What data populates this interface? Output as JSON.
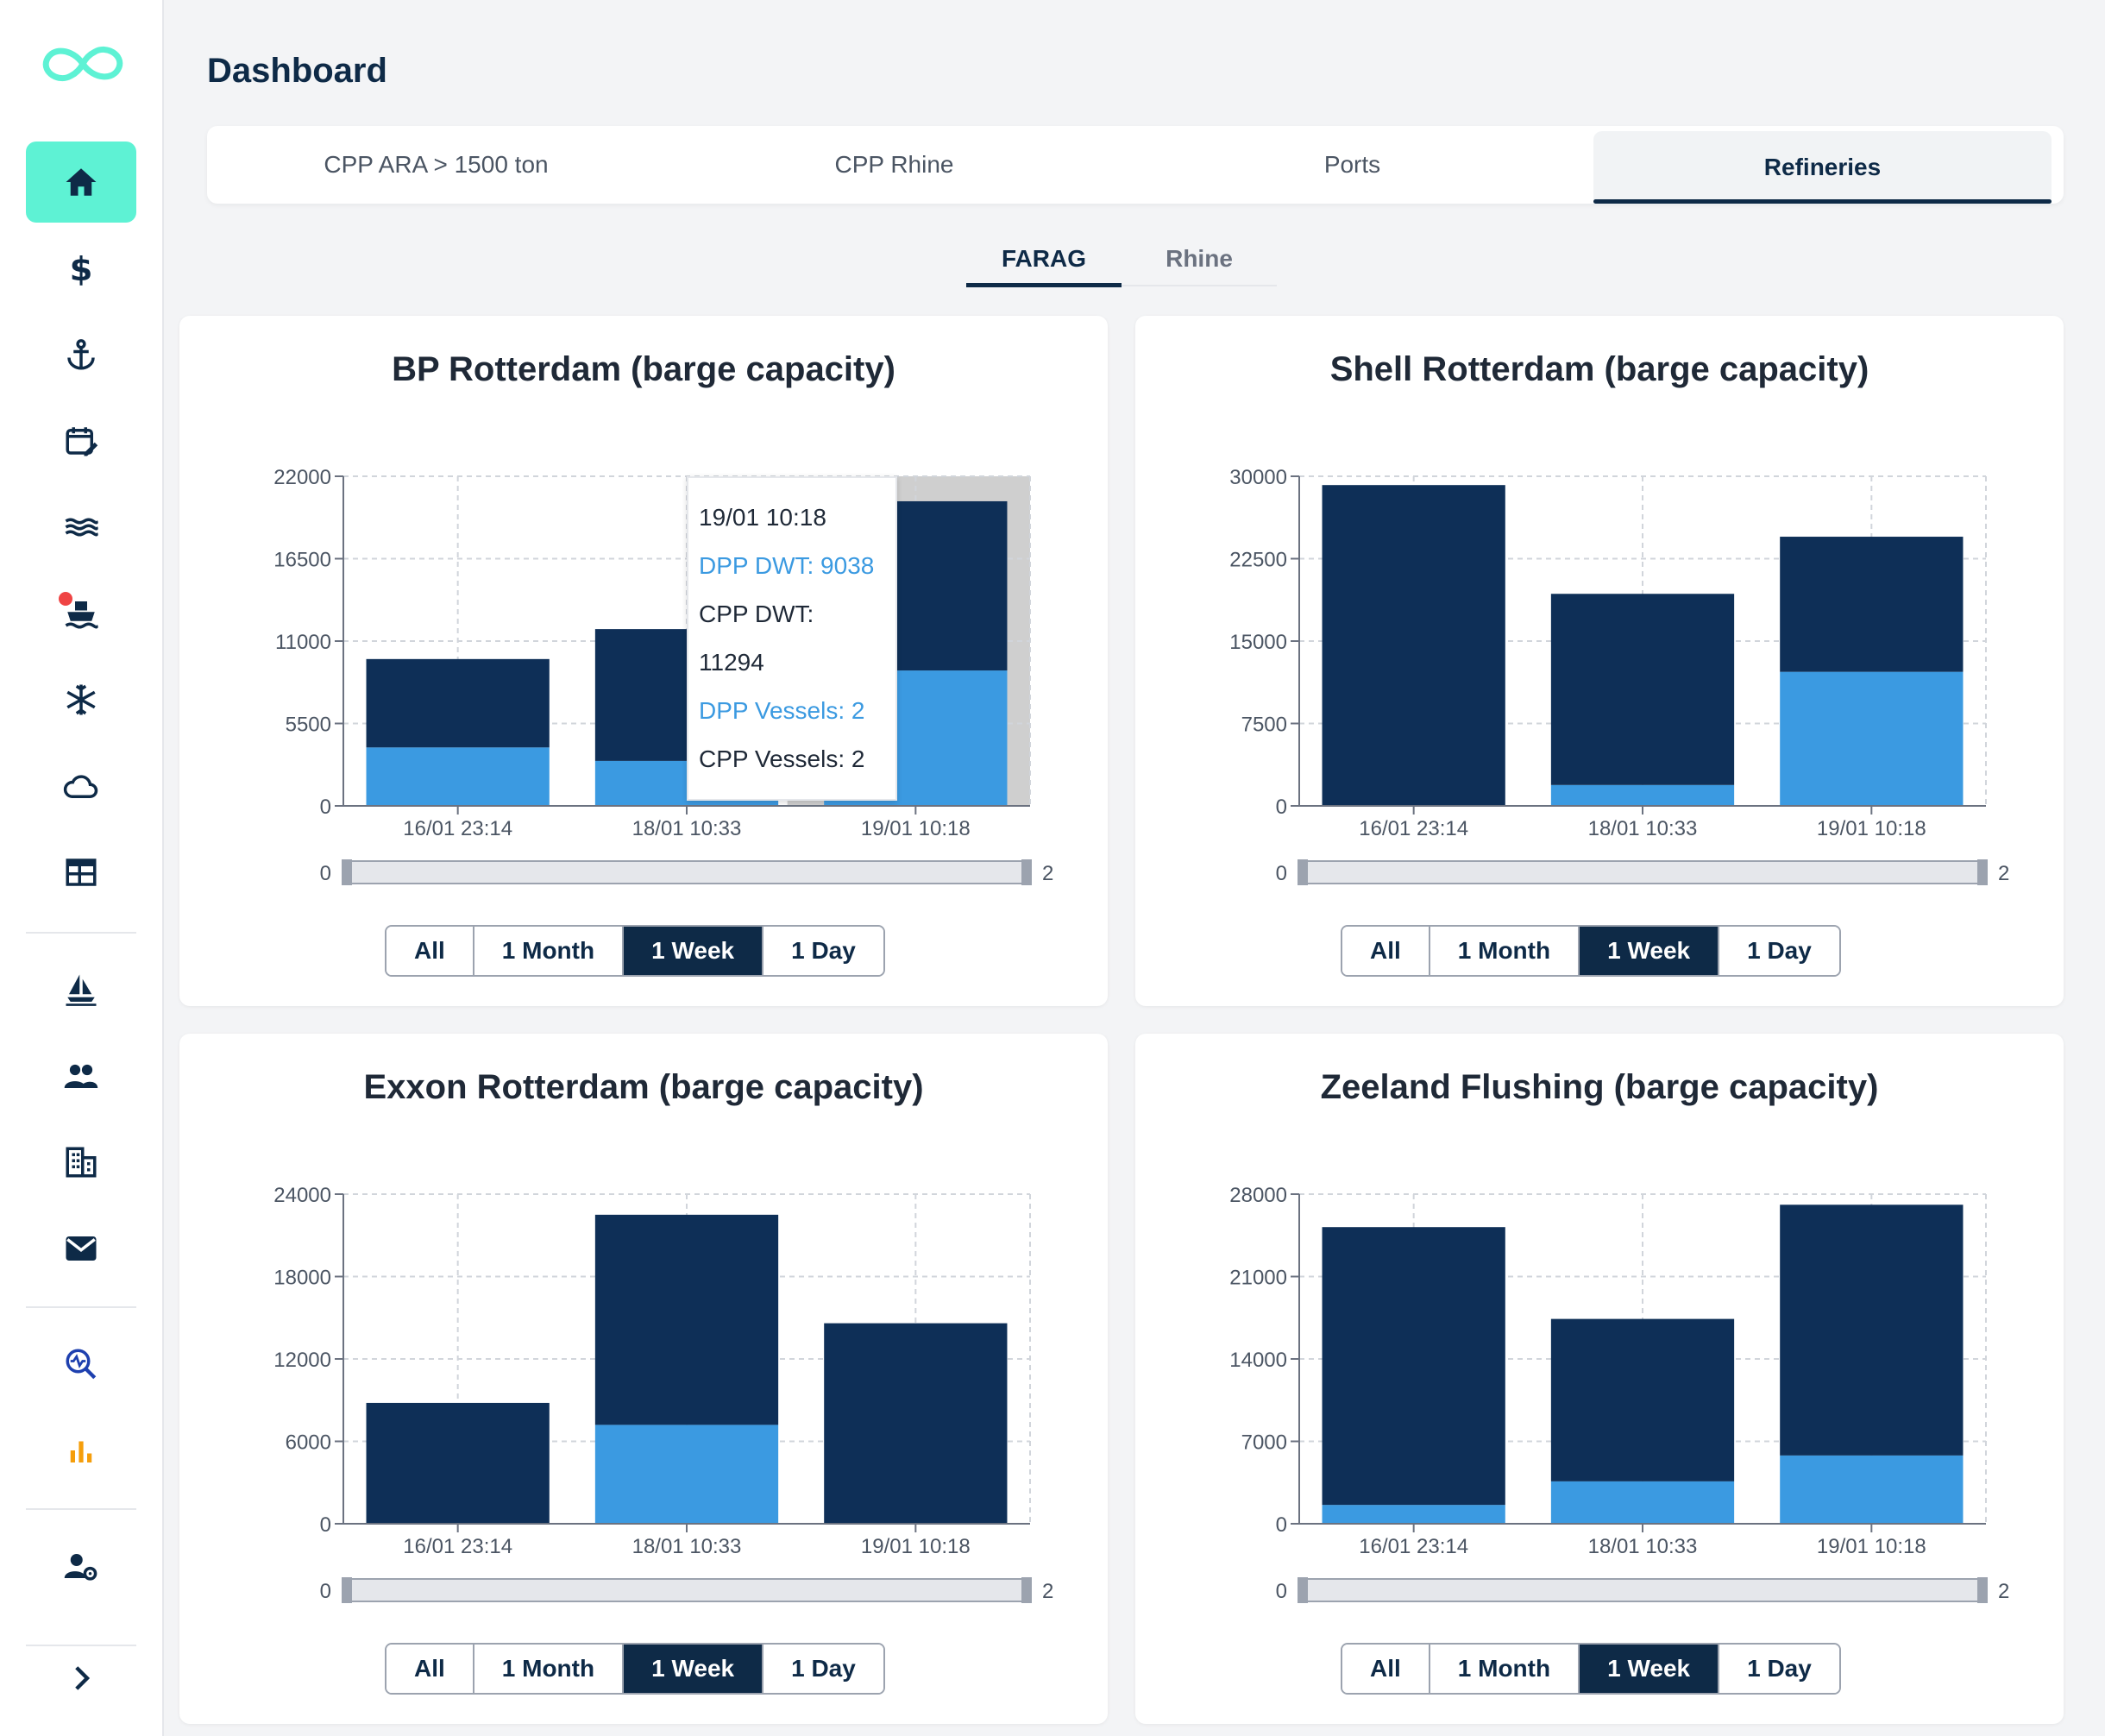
{
  "page": {
    "title": "Dashboard"
  },
  "sidebar": {
    "items": [
      {
        "icon": "home-icon",
        "active": true
      },
      {
        "icon": "dollar-icon"
      },
      {
        "icon": "anchor-icon"
      },
      {
        "icon": "calendar-edit-icon"
      },
      {
        "icon": "waves-icon"
      },
      {
        "icon": "ship-icon",
        "badge": true
      },
      {
        "icon": "snowflake-icon"
      },
      {
        "icon": "cloud-icon"
      },
      {
        "icon": "table-icon"
      },
      {
        "icon": "sailboat-icon"
      },
      {
        "icon": "people-icon"
      },
      {
        "icon": "building-icon"
      },
      {
        "icon": "mail-icon"
      },
      {
        "icon": "analytics-search-icon"
      },
      {
        "icon": "bar-chart-icon"
      },
      {
        "icon": "user-settings-icon"
      },
      {
        "icon": "chevron-right-icon"
      }
    ]
  },
  "tabs": [
    {
      "label": "CPP ARA > 1500 ton"
    },
    {
      "label": "CPP Rhine"
    },
    {
      "label": "Ports"
    },
    {
      "label": "Refineries",
      "active": true
    }
  ],
  "subtabs": [
    {
      "label": "FARAG",
      "active": true
    },
    {
      "label": "Rhine"
    }
  ],
  "range_buttons": [
    "All",
    "1 Month",
    "1 Week",
    "1 Day"
  ],
  "range_active": "1 Week",
  "slider": {
    "min_label": "0",
    "max_label": "2"
  },
  "tooltip": {
    "date": "19/01 10:18",
    "dpp_dwt": "DPP DWT: 9038",
    "cpp_dwt": "CPP DWT: 11294",
    "dpp_vessels": "DPP Vessels: 2",
    "cpp_vessels": "CPP Vessels: 2"
  },
  "colors": {
    "cpp": "#0e2f57",
    "dpp": "#3b9ae1",
    "accent": "#5ef2d4"
  },
  "chart_data": [
    {
      "type": "bar",
      "title": "BP Rotterdam (barge capacity)",
      "categories": [
        "16/01 23:14",
        "18/01 10:33",
        "19/01 10:18"
      ],
      "series": [
        {
          "name": "DPP DWT",
          "values": [
            3900,
            3000,
            9038
          ]
        },
        {
          "name": "CPP DWT",
          "values": [
            5900,
            8800,
            11294
          ]
        }
      ],
      "ylim": [
        0,
        22000
      ],
      "yticks": [
        "0",
        "5500",
        "11000",
        "16500",
        "22000"
      ],
      "stacked": true
    },
    {
      "type": "bar",
      "title": "Shell Rotterdam (barge capacity)",
      "categories": [
        "16/01 23:14",
        "18/01 10:33",
        "19/01 10:18"
      ],
      "series": [
        {
          "name": "DPP DWT",
          "values": [
            0,
            1900,
            12200
          ]
        },
        {
          "name": "CPP DWT",
          "values": [
            29200,
            17400,
            12300
          ]
        }
      ],
      "ylim": [
        0,
        30000
      ],
      "yticks": [
        "0",
        "7500",
        "15000",
        "22500",
        "30000"
      ],
      "stacked": true
    },
    {
      "type": "bar",
      "title": "Exxon Rotterdam (barge capacity)",
      "categories": [
        "16/01 23:14",
        "18/01 10:33",
        "19/01 10:18"
      ],
      "series": [
        {
          "name": "DPP DWT",
          "values": [
            0,
            7200,
            0
          ]
        },
        {
          "name": "CPP DWT",
          "values": [
            8800,
            15300,
            14600
          ]
        }
      ],
      "ylim": [
        0,
        24000
      ],
      "yticks": [
        "0",
        "6000",
        "12000",
        "18000",
        "24000"
      ],
      "stacked": true
    },
    {
      "type": "bar",
      "title": "Zeeland Flushing (barge capacity)",
      "categories": [
        "16/01 23:14",
        "18/01 10:33",
        "19/01 10:18"
      ],
      "series": [
        {
          "name": "DPP DWT",
          "values": [
            1600,
            3600,
            5800
          ]
        },
        {
          "name": "CPP DWT",
          "values": [
            23600,
            13800,
            21300
          ]
        }
      ],
      "ylim": [
        0,
        28000
      ],
      "yticks": [
        "0",
        "7000",
        "14000",
        "21000",
        "28000"
      ],
      "stacked": true
    }
  ]
}
